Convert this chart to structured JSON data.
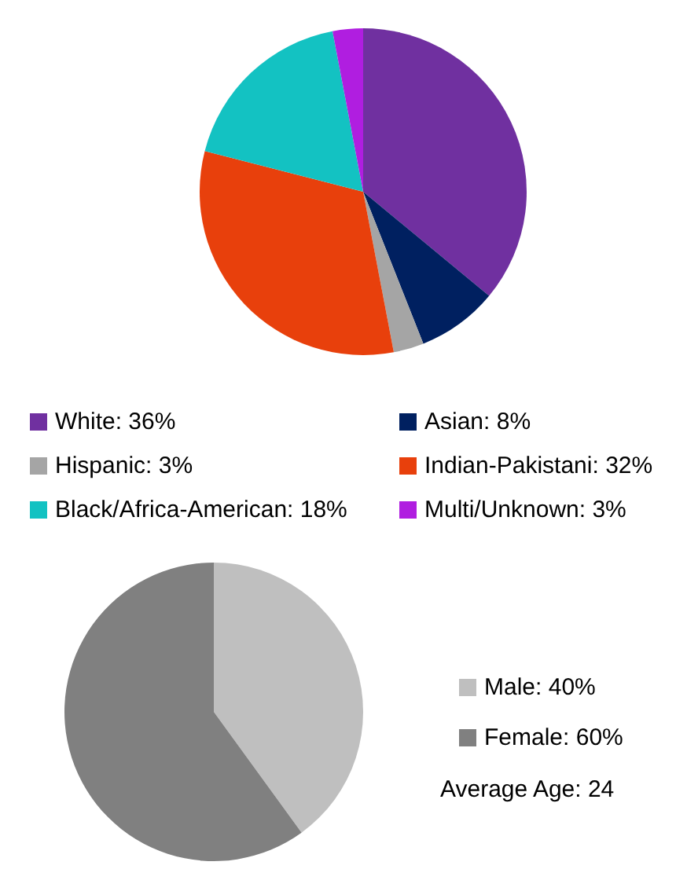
{
  "chart_data": [
    {
      "type": "pie",
      "categories": [
        "White",
        "Asian",
        "Hispanic",
        "Indian-Pakistani",
        "Black/Africa-American",
        "Multi/Unknown"
      ],
      "values": [
        36,
        8,
        3,
        32,
        18,
        3
      ],
      "value_labels": [
        "36%",
        "8%",
        "3%",
        "32%",
        "18%",
        "3%"
      ],
      "colors": [
        "#7030a0",
        "#002060",
        "#a5a5a5",
        "#e8400c",
        "#13c2c2",
        "#b01ee0"
      ],
      "legend": "bottom"
    },
    {
      "type": "pie",
      "categories": [
        "Male",
        "Female"
      ],
      "values": [
        40,
        60
      ],
      "value_labels": [
        "40%",
        "60%"
      ],
      "colors": [
        "#bfbfbf",
        "#808080"
      ],
      "legend": "right",
      "annotations": [
        "Average Age: 24"
      ]
    }
  ]
}
